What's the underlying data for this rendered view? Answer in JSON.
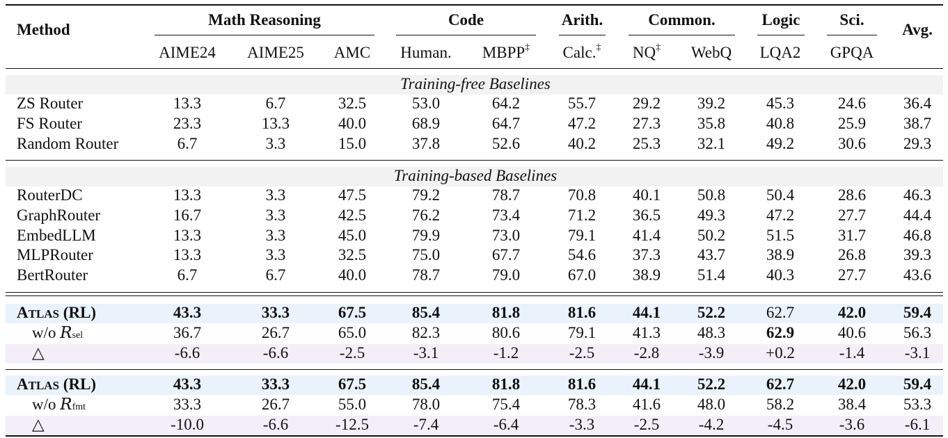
{
  "header": {
    "method_label": "Method",
    "avg_label": "Avg.",
    "groups": [
      {
        "label": "Math Reasoning",
        "cols": [
          "AIME24",
          "AIME25",
          "AMC"
        ],
        "marks": [
          "",
          "",
          ""
        ]
      },
      {
        "label": "Code",
        "cols": [
          "Human.",
          "MBPP"
        ],
        "marks": [
          "",
          "‡"
        ]
      },
      {
        "label": "Arith.",
        "cols": [
          "Calc."
        ],
        "marks": [
          "‡"
        ]
      },
      {
        "label": "Common.",
        "cols": [
          "NQ",
          "WebQ"
        ],
        "marks": [
          "‡",
          ""
        ]
      },
      {
        "label": "Logic",
        "cols": [
          "LQA2"
        ],
        "marks": [
          ""
        ]
      },
      {
        "label": "Sci.",
        "cols": [
          "GPQA"
        ],
        "marks": [
          ""
        ]
      }
    ]
  },
  "sections": [
    {
      "title": "Training-free Baselines",
      "rows": [
        {
          "method": "ZS Router",
          "values": [
            "13.3",
            "6.7",
            "32.5",
            "53.0",
            "64.2",
            "55.7",
            "29.2",
            "39.2",
            "45.3",
            "24.6",
            "36.4"
          ]
        },
        {
          "method": "FS Router",
          "values": [
            "23.3",
            "13.3",
            "40.0",
            "68.9",
            "64.7",
            "47.2",
            "27.3",
            "35.8",
            "40.8",
            "25.9",
            "38.7"
          ]
        },
        {
          "method": "Random Router",
          "values": [
            "6.7",
            "3.3",
            "15.0",
            "37.8",
            "52.6",
            "40.2",
            "25.3",
            "32.1",
            "49.2",
            "30.6",
            "29.3"
          ]
        }
      ]
    },
    {
      "title": "Training-based Baselines",
      "rows": [
        {
          "method": "RouterDC",
          "values": [
            "13.3",
            "3.3",
            "47.5",
            "79.2",
            "78.7",
            "70.8",
            "40.1",
            "50.8",
            "50.4",
            "28.6",
            "46.3"
          ]
        },
        {
          "method": "GraphRouter",
          "values": [
            "16.7",
            "3.3",
            "42.5",
            "76.2",
            "73.4",
            "71.2",
            "36.5",
            "49.3",
            "47.2",
            "27.7",
            "44.4"
          ]
        },
        {
          "method": "EmbedLLM",
          "values": [
            "13.3",
            "3.3",
            "45.0",
            "79.9",
            "73.0",
            "79.1",
            "41.4",
            "50.2",
            "51.5",
            "31.7",
            "46.8"
          ]
        },
        {
          "method": "MLPRouter",
          "values": [
            "13.3",
            "3.3",
            "32.5",
            "75.0",
            "67.7",
            "54.6",
            "37.3",
            "43.7",
            "38.9",
            "26.8",
            "39.3"
          ]
        },
        {
          "method": "BertRouter",
          "values": [
            "6.7",
            "6.7",
            "40.0",
            "78.7",
            "79.0",
            "67.0",
            "38.9",
            "51.4",
            "40.3",
            "27.7",
            "43.6"
          ]
        }
      ]
    }
  ],
  "ablations": [
    {
      "main": {
        "name_first": "A",
        "name_rest": "TLAS",
        "name_suffix": " (RL)",
        "values": [
          "43.3",
          "33.3",
          "67.5",
          "85.4",
          "81.8",
          "81.6",
          "44.1",
          "52.2",
          "62.7",
          "42.0",
          "59.4"
        ],
        "bold": [
          true,
          true,
          true,
          true,
          true,
          true,
          true,
          true,
          false,
          true,
          true
        ]
      },
      "without": {
        "prefix": "w/o ",
        "symbol": "R",
        "subscript": "sel",
        "values": [
          "36.7",
          "26.7",
          "65.0",
          "82.3",
          "80.6",
          "79.1",
          "41.3",
          "48.3",
          "62.9",
          "40.6",
          "56.3"
        ],
        "bold": [
          false,
          false,
          false,
          false,
          false,
          false,
          false,
          false,
          true,
          false,
          false
        ]
      },
      "delta": {
        "symbol": "△",
        "values": [
          "-6.6",
          "-6.6",
          "-2.5",
          "-3.1",
          "-1.2",
          "-2.5",
          "-2.8",
          "-3.9",
          "+0.2",
          "-1.4",
          "-3.1"
        ]
      }
    },
    {
      "main": {
        "name_first": "A",
        "name_rest": "TLAS",
        "name_suffix": " (RL)",
        "values": [
          "43.3",
          "33.3",
          "67.5",
          "85.4",
          "81.8",
          "81.6",
          "44.1",
          "52.2",
          "62.7",
          "42.0",
          "59.4"
        ],
        "bold": [
          true,
          true,
          true,
          true,
          true,
          true,
          true,
          true,
          true,
          true,
          true
        ]
      },
      "without": {
        "prefix": "w/o ",
        "symbol": "R",
        "subscript": "fmt",
        "values": [
          "33.3",
          "26.7",
          "55.0",
          "78.0",
          "75.4",
          "78.3",
          "41.6",
          "48.0",
          "58.2",
          "38.4",
          "53.3"
        ],
        "bold": [
          false,
          false,
          false,
          false,
          false,
          false,
          false,
          false,
          false,
          false,
          false
        ]
      },
      "delta": {
        "symbol": "△",
        "values": [
          "-10.0",
          "-6.6",
          "-12.5",
          "-7.4",
          "-6.4",
          "-3.3",
          "-2.5",
          "-4.2",
          "-4.5",
          "-3.6",
          "-6.1"
        ]
      }
    }
  ],
  "colors": {
    "main_band": "#eaf2fb",
    "delta_band": "#f3eef8",
    "section_band": "#f2f2f2",
    "rule": "#111111"
  }
}
